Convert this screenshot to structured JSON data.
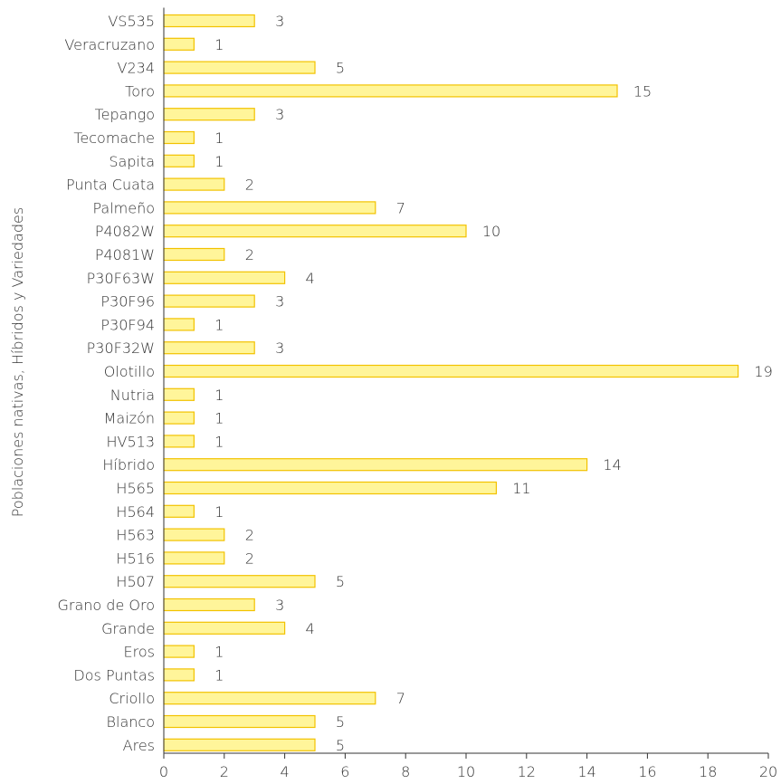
{
  "chart_data": {
    "type": "bar",
    "orientation": "horizontal",
    "title": "",
    "xlabel": "",
    "ylabel": "Poblaciones nativas, Híbridos y Variedades",
    "xlim": [
      0,
      20
    ],
    "xticks": [
      0,
      2,
      4,
      6,
      8,
      10,
      12,
      14,
      16,
      18,
      20
    ],
    "grid": false,
    "legend": "none",
    "bar_fill": "#fff59a",
    "bar_stroke": "#f2c200",
    "categories": [
      "VS535",
      "Veracruzano",
      "V234",
      "Toro",
      "Tepango",
      "Tecomache",
      "Sapita",
      "Punta Cuata",
      "Palmeño",
      "P4082W",
      "P4081W",
      "P30F63W",
      "P30F96",
      "P30F94",
      "P30F32W",
      "Olotillo",
      "Nutria",
      "Maizón",
      "HV513",
      "Híbrido",
      "H565",
      "H564",
      "H563",
      "H516",
      "H507",
      "Grano de Oro",
      "Grande",
      "Eros",
      "Dos Puntas",
      "Criollo",
      "Blanco",
      "Ares"
    ],
    "values": [
      3,
      1,
      5,
      15,
      3,
      1,
      1,
      2,
      7,
      10,
      2,
      4,
      3,
      1,
      3,
      19,
      1,
      1,
      1,
      14,
      11,
      1,
      2,
      2,
      5,
      3,
      4,
      1,
      1,
      7,
      5,
      5
    ]
  }
}
